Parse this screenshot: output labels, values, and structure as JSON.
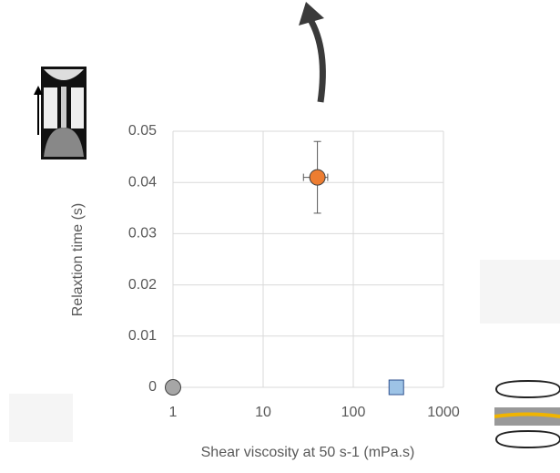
{
  "chart_data": {
    "type": "scatter",
    "x_label": "Shear viscosity at 50 s-1 (mPa.s)",
    "y_label": "Relaxtion time (s)",
    "xscale": "log",
    "xlim": [
      1,
      1000
    ],
    "xticks": [
      1,
      10,
      100,
      1000
    ],
    "ylim": [
      0,
      0.05
    ],
    "yticks": [
      0,
      0.01,
      0.02,
      0.03,
      0.04,
      0.05
    ],
    "grid": true,
    "series": [
      {
        "color": "#a6a6a6",
        "marker": "circle",
        "x": [
          1
        ],
        "values": [
          0
        ]
      },
      {
        "color": "#ed7d31",
        "marker": "circle",
        "x": [
          40
        ],
        "values": [
          0.041
        ],
        "yerr": [
          0.007
        ],
        "xerr": [
          12
        ]
      },
      {
        "color": "#9dc3e6",
        "marker": "square",
        "x": [
          300
        ],
        "values": [
          0
        ]
      }
    ]
  }
}
